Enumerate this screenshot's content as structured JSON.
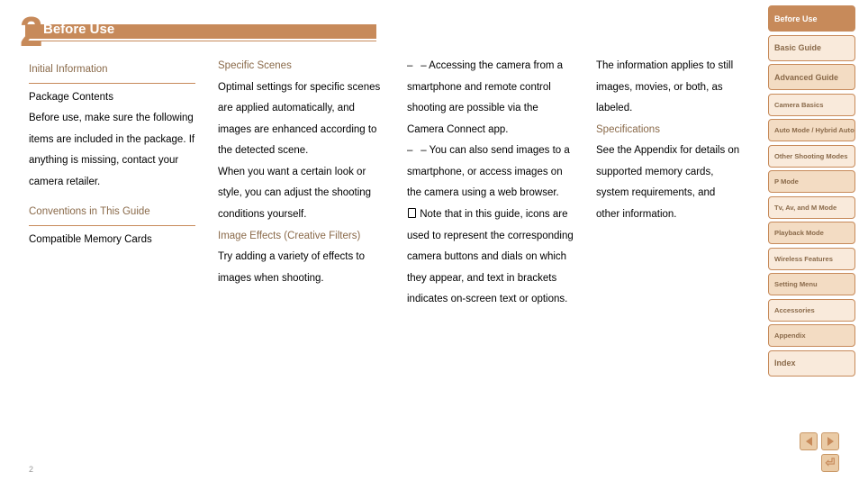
{
  "page_number": "2",
  "page_footer": "2",
  "title": "Before Use",
  "columns": {
    "c1": {
      "sect1_head": "Initial Information",
      "p1": "Package Contents",
      "p2a": "Before use, make sure the following items are included in the package.",
      "p2b": "If anything is missing, contact your camera retailer.",
      "sect2_head": "Conventions in This Guide",
      "p3": "Compatible Memory Cards"
    },
    "c2": {
      "p1": "Specific Scenes",
      "p1b": "Optimal settings for specific scenes are applied automatically, and images are enhanced according to the detected scene.",
      "p2": "When you want a certain look or style, you can adjust the shooting conditions yourself.",
      "p3": "Image Effects (Creative Filters)",
      "p4": "Try adding a variety of effects to images when shooting."
    },
    "c3": {
      "p1": "– Accessing the camera from a smartphone and remote control shooting are possible via the Camera Connect app.",
      "p2": "– You can also send images to a smartphone, or access images on the camera using a web browser.",
      "p3_icon": "☐",
      "p3": "Note that in this guide, icons are used to represent the corresponding camera buttons and dials on which they appear, and text in brackets indicates on-screen text or options."
    },
    "c4": {
      "p1": "The information applies to still images, movies, or both, as labeled.",
      "p2": "Specifications",
      "p3": "See the Appendix for details on supported memory cards, system requirements, and other information."
    }
  },
  "tabs": [
    {
      "label": "Before Use",
      "cls": "big active"
    },
    {
      "label": "Basic Guide",
      "cls": "big light"
    },
    {
      "label": "Advanced Guide",
      "cls": "big"
    },
    {
      "label": "Camera Basics",
      "cls": "light"
    },
    {
      "label": "Auto Mode / Hybrid Auto Mode",
      "cls": ""
    },
    {
      "label": "Other Shooting Modes",
      "cls": "light"
    },
    {
      "label": "P Mode",
      "cls": ""
    },
    {
      "label": "Tv, Av, and M Mode",
      "cls": "light"
    },
    {
      "label": "Playback Mode",
      "cls": ""
    },
    {
      "label": "Wireless Features",
      "cls": "light"
    },
    {
      "label": "Setting Menu",
      "cls": ""
    },
    {
      "label": "Accessories",
      "cls": "light"
    },
    {
      "label": "Appendix",
      "cls": ""
    },
    {
      "label": "Index",
      "cls": "big light"
    }
  ]
}
